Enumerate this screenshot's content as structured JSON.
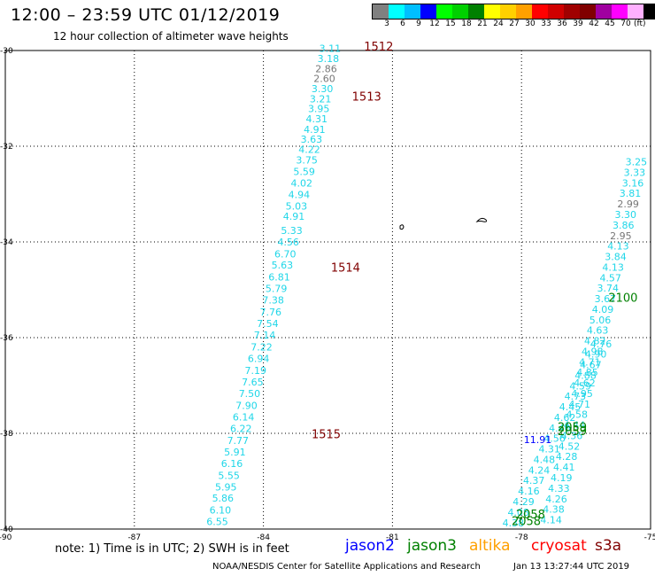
{
  "header": {
    "title": "12:00 – 23:59 UTC 01/12/2019",
    "subtitle": "12 hour collection of altimeter wave heights"
  },
  "legend": {
    "colors": [
      "#808080",
      "#00ffff",
      "#00bfff",
      "#0000ff",
      "#00ff00",
      "#00d000",
      "#008000",
      "#ffff00",
      "#ffd000",
      "#ffa000",
      "#ff0000",
      "#d00000",
      "#a00000",
      "#800000",
      "#a000a0",
      "#ff00ff",
      "#ffb0ff",
      "#000000"
    ],
    "labels": [
      "3",
      "6",
      "9",
      "12",
      "15",
      "18",
      "21",
      "24",
      "27",
      "30",
      "33",
      "36",
      "39",
      "42",
      "45",
      "70"
    ],
    "unit": "(ft)"
  },
  "map": {
    "lon_range": [
      -90,
      -75
    ],
    "lat_range": [
      -40,
      -30
    ],
    "lon_ticks": [
      "-90",
      "-87",
      "-84",
      "-81",
      "-78",
      "-75"
    ],
    "lat_ticks": [
      "-30",
      "-32",
      "-34",
      "-36",
      "-38",
      "-40"
    ]
  },
  "tracks": {
    "cyan_color": "#1fd6e8",
    "track_a": [
      {
        "lat": -30.03,
        "lon": -82.2,
        "v": "3.11"
      },
      {
        "lat": -30.24,
        "lon": -82.24,
        "v": "3.18"
      },
      {
        "lat": -30.45,
        "lon": -82.29,
        "v": "2.86",
        "gray": true
      },
      {
        "lat": -30.66,
        "lon": -82.33,
        "v": "2.60",
        "gray": true
      },
      {
        "lat": -30.87,
        "lon": -82.38,
        "v": "3.30"
      },
      {
        "lat": -31.08,
        "lon": -82.42,
        "v": "3.21"
      },
      {
        "lat": -31.29,
        "lon": -82.46,
        "v": "3.95"
      },
      {
        "lat": -31.5,
        "lon": -82.51,
        "v": "4.31"
      },
      {
        "lat": -31.72,
        "lon": -82.56,
        "v": "4.91"
      },
      {
        "lat": -31.93,
        "lon": -82.63,
        "v": "3.63"
      },
      {
        "lat": -32.14,
        "lon": -82.68,
        "v": "4.22"
      },
      {
        "lat": -32.36,
        "lon": -82.74,
        "v": "3.75"
      },
      {
        "lat": -32.6,
        "lon": -82.8,
        "v": "5.59"
      },
      {
        "lat": -32.84,
        "lon": -82.86,
        "v": "4.02"
      },
      {
        "lat": -33.08,
        "lon": -82.92,
        "v": "4.94"
      },
      {
        "lat": -33.32,
        "lon": -82.98,
        "v": "5.03"
      },
      {
        "lat": -33.54,
        "lon": -83.04,
        "v": "4.91"
      },
      {
        "lat": -33.83,
        "lon": -83.09,
        "v": "5.33"
      },
      {
        "lat": -34.07,
        "lon": -83.17,
        "v": "4.56"
      },
      {
        "lat": -34.32,
        "lon": -83.24,
        "v": "6.70"
      },
      {
        "lat": -34.56,
        "lon": -83.31,
        "v": "5.63"
      },
      {
        "lat": -34.81,
        "lon": -83.38,
        "v": "6.81"
      },
      {
        "lat": -35.05,
        "lon": -83.45,
        "v": "5.79"
      },
      {
        "lat": -35.29,
        "lon": -83.52,
        "v": "7.38"
      },
      {
        "lat": -35.54,
        "lon": -83.58,
        "v": "7.76"
      },
      {
        "lat": -35.78,
        "lon": -83.65,
        "v": "7.54"
      },
      {
        "lat": -36.02,
        "lon": -83.72,
        "v": "7.14"
      },
      {
        "lat": -36.27,
        "lon": -83.79,
        "v": "7.22"
      },
      {
        "lat": -36.51,
        "lon": -83.86,
        "v": "6.94"
      },
      {
        "lat": -36.76,
        "lon": -83.93,
        "v": "7.19"
      },
      {
        "lat": -37.0,
        "lon": -84.0,
        "v": "7.65"
      },
      {
        "lat": -37.24,
        "lon": -84.07,
        "v": "7.50"
      },
      {
        "lat": -37.49,
        "lon": -84.14,
        "v": "7.90"
      },
      {
        "lat": -37.73,
        "lon": -84.21,
        "v": "6.14"
      },
      {
        "lat": -37.97,
        "lon": -84.27,
        "v": "6.22"
      },
      {
        "lat": -38.22,
        "lon": -84.34,
        "v": "7.77"
      },
      {
        "lat": -38.46,
        "lon": -84.41,
        "v": "5.91"
      },
      {
        "lat": -38.7,
        "lon": -84.48,
        "v": "6.16"
      },
      {
        "lat": -38.95,
        "lon": -84.55,
        "v": "5.55"
      },
      {
        "lat": -39.19,
        "lon": -84.62,
        "v": "5.95"
      },
      {
        "lat": -39.43,
        "lon": -84.69,
        "v": "5.86"
      },
      {
        "lat": -39.68,
        "lon": -84.75,
        "v": "6.10"
      },
      {
        "lat": -39.92,
        "lon": -84.82,
        "v": "6.55"
      }
    ],
    "track_b": [
      {
        "lat": -32.4,
        "lon": -75.08,
        "v": "3.25"
      },
      {
        "lat": -32.62,
        "lon": -75.12,
        "v": "3.33"
      },
      {
        "lat": -32.84,
        "lon": -75.16,
        "v": "3.16"
      },
      {
        "lat": -33.06,
        "lon": -75.22,
        "v": "3.81"
      },
      {
        "lat": -33.28,
        "lon": -75.27,
        "v": "2.99",
        "gray": true
      },
      {
        "lat": -33.5,
        "lon": -75.33,
        "v": "3.30"
      },
      {
        "lat": -33.72,
        "lon": -75.38,
        "v": "3.86"
      },
      {
        "lat": -33.94,
        "lon": -75.44,
        "v": "2.95",
        "gray": true
      },
      {
        "lat": -34.16,
        "lon": -75.5,
        "v": "4.13"
      },
      {
        "lat": -34.38,
        "lon": -75.56,
        "v": "3.84"
      },
      {
        "lat": -34.6,
        "lon": -75.62,
        "v": "4.13"
      },
      {
        "lat": -34.82,
        "lon": -75.68,
        "v": "4.57"
      },
      {
        "lat": -35.04,
        "lon": -75.74,
        "v": "3.74"
      },
      {
        "lat": -35.26,
        "lon": -75.8,
        "v": "3.67"
      },
      {
        "lat": -35.48,
        "lon": -75.86,
        "v": "4.09"
      },
      {
        "lat": -35.7,
        "lon": -75.92,
        "v": "5.06"
      },
      {
        "lat": -35.92,
        "lon": -75.98,
        "v": "4.63"
      },
      {
        "lat": -36.14,
        "lon": -76.04,
        "v": "4.82"
      },
      {
        "lat": -36.36,
        "lon": -76.1,
        "v": "4.98"
      },
      {
        "lat": -36.58,
        "lon": -76.16,
        "v": "4.71"
      },
      {
        "lat": -36.8,
        "lon": -76.22,
        "v": "4.85"
      },
      {
        "lat": -37.02,
        "lon": -76.28,
        "v": "4.62"
      },
      {
        "lat": -37.24,
        "lon": -76.34,
        "v": "4.95"
      },
      {
        "lat": -37.46,
        "lon": -76.4,
        "v": "4.71"
      },
      {
        "lat": -37.68,
        "lon": -76.46,
        "v": "4.58"
      },
      {
        "lat": -37.9,
        "lon": -76.52,
        "v": "4.44"
      },
      {
        "lat": -38.12,
        "lon": -76.58,
        "v": "4.36"
      },
      {
        "lat": -38.34,
        "lon": -76.64,
        "v": "4.52"
      },
      {
        "lat": -38.56,
        "lon": -76.7,
        "v": "4.28"
      },
      {
        "lat": -38.78,
        "lon": -76.76,
        "v": "4.41"
      },
      {
        "lat": -39.0,
        "lon": -76.82,
        "v": "4.19"
      },
      {
        "lat": -39.22,
        "lon": -76.88,
        "v": "4.33"
      },
      {
        "lat": -39.44,
        "lon": -76.94,
        "v": "4.26"
      },
      {
        "lat": -39.66,
        "lon": -77.0,
        "v": "4.38"
      },
      {
        "lat": -39.88,
        "lon": -77.06,
        "v": "4.14"
      }
    ],
    "track_c": [
      {
        "lat": -36.2,
        "lon": -75.9,
        "v": "4.76"
      },
      {
        "lat": -36.42,
        "lon": -76.02,
        "v": "4.90"
      },
      {
        "lat": -36.64,
        "lon": -76.14,
        "v": "4.67"
      },
      {
        "lat": -36.86,
        "lon": -76.26,
        "v": "4.88"
      },
      {
        "lat": -37.08,
        "lon": -76.38,
        "v": "4.59"
      },
      {
        "lat": -37.3,
        "lon": -76.5,
        "v": "4.73"
      },
      {
        "lat": -37.52,
        "lon": -76.62,
        "v": "4.45"
      },
      {
        "lat": -37.74,
        "lon": -76.74,
        "v": "4.62"
      },
      {
        "lat": -37.96,
        "lon": -76.86,
        "v": "4.40"
      },
      {
        "lat": -38.18,
        "lon": -76.98,
        "v": "4.56"
      },
      {
        "lat": -38.4,
        "lon": -77.1,
        "v": "4.31"
      },
      {
        "lat": -38.62,
        "lon": -77.22,
        "v": "4.48"
      },
      {
        "lat": -38.84,
        "lon": -77.34,
        "v": "4.24"
      },
      {
        "lat": -39.06,
        "lon": -77.46,
        "v": "4.37"
      },
      {
        "lat": -39.28,
        "lon": -77.58,
        "v": "4.16"
      },
      {
        "lat": -39.5,
        "lon": -77.7,
        "v": "4.29"
      },
      {
        "lat": -39.72,
        "lon": -77.82,
        "v": "4.08"
      },
      {
        "lat": -39.94,
        "lon": -77.94,
        "v": "4.38"
      }
    ],
    "blue_points": [
      {
        "lat": -38.2,
        "lon": -77.3,
        "v": "11.91"
      }
    ],
    "time_labels": [
      {
        "lat": -30.0,
        "lon": -80.98,
        "t": "1512",
        "color": "#800000"
      },
      {
        "lat": -31.05,
        "lon": -81.26,
        "t": "1513",
        "color": "#800000"
      },
      {
        "lat": -34.62,
        "lon": -81.75,
        "t": "1514",
        "color": "#800000"
      },
      {
        "lat": -38.1,
        "lon": -82.2,
        "t": "1515",
        "color": "#800000"
      },
      {
        "lat": -35.25,
        "lon": -75.3,
        "t": "2100",
        "color": "#008000"
      },
      {
        "lat": -37.95,
        "lon": -76.48,
        "t": "2059",
        "color": "#008000"
      },
      {
        "lat": -38.04,
        "lon": -76.48,
        "t": "2059",
        "color": "#008000"
      },
      {
        "lat": -39.78,
        "lon": -77.45,
        "t": "2058",
        "color": "#008000"
      },
      {
        "lat": -39.92,
        "lon": -77.55,
        "t": "2058",
        "color": "#008000"
      }
    ]
  },
  "footer": {
    "note": "note:  1) Time is in UTC;  2) SWH is in feet",
    "satellites": [
      {
        "name": "jason2",
        "color": "#0000ff"
      },
      {
        "name": "jason3",
        "color": "#008000"
      },
      {
        "name": "altika",
        "color": "#ffa000"
      },
      {
        "name": "cryosat",
        "color": "#ff0000"
      },
      {
        "name": "s3a",
        "color": "#800000"
      }
    ],
    "credit": "NOAA/NESDIS Center for Satellite Applications and Research",
    "generated": "Jan 13 13:27:44 UTC 2019"
  }
}
